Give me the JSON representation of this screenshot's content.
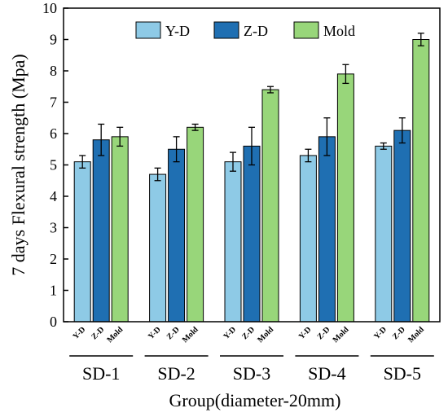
{
  "chart_data": {
    "type": "bar",
    "xlabel": "Group(diameter-20mm)",
    "ylabel": "7 days Flexural strength (Mpa)",
    "ylim": [
      0,
      10
    ],
    "yticks": [
      "0",
      "1",
      "2",
      "3",
      "4",
      "5",
      "6",
      "7",
      "8",
      "9",
      "10"
    ],
    "categories": [
      "SD-1",
      "SD-2",
      "SD-3",
      "SD-4",
      "SD-5"
    ],
    "sub_categories": [
      "Y-D",
      "Z-D",
      "Mold"
    ],
    "legend_position": "top-right",
    "series": [
      {
        "name": "Y-D",
        "color": "#8ecae6",
        "values": [
          5.1,
          4.7,
          5.1,
          5.3,
          5.6
        ],
        "errors": [
          0.2,
          0.2,
          0.3,
          0.2,
          0.1
        ]
      },
      {
        "name": "Z-D",
        "color": "#1f6fb2",
        "values": [
          5.8,
          5.5,
          5.6,
          5.9,
          6.1
        ],
        "errors": [
          0.5,
          0.4,
          0.6,
          0.6,
          0.4
        ]
      },
      {
        "name": "Mold",
        "color": "#98d67a",
        "values": [
          5.9,
          6.2,
          7.4,
          7.9,
          9.0
        ],
        "errors": [
          0.3,
          0.1,
          0.1,
          0.3,
          0.2
        ]
      }
    ]
  }
}
